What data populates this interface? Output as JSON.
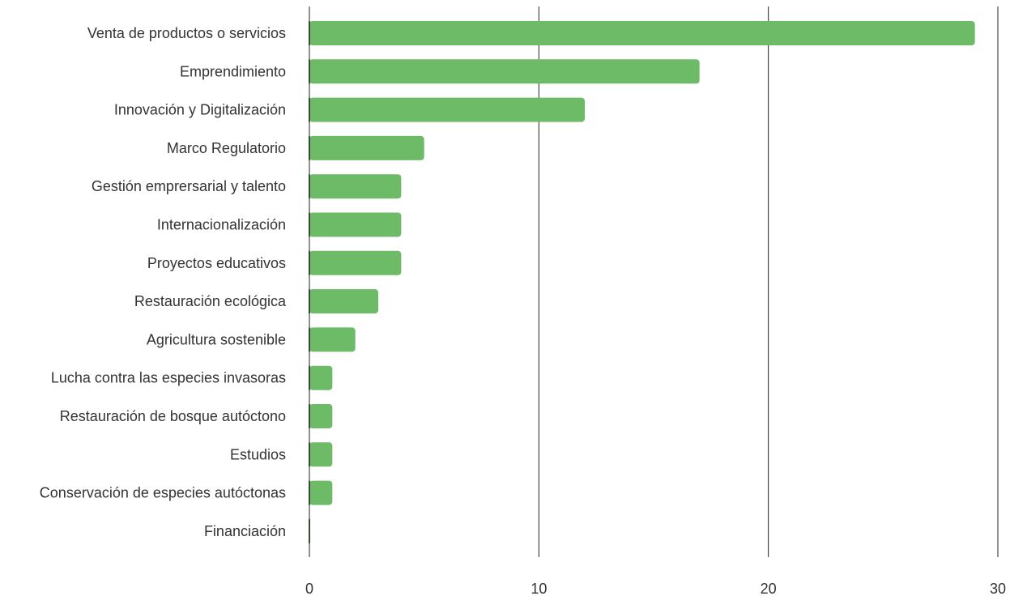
{
  "chart_data": {
    "type": "bar",
    "orientation": "horizontal",
    "title": "",
    "xlabel": "",
    "ylabel": "",
    "categories": [
      "Venta de productos o servicios",
      "Emprendimiento",
      "Innovación y Digitalización",
      "Marco Regulatorio",
      "Gestión emprersarial y talento",
      "Internacionalización",
      "Proyectos educativos",
      "Restauración ecológica",
      "Agricultura sostenible",
      "Lucha contra las especies invasoras",
      "Restauración de bosque autóctono",
      "Estudios",
      "Conservación de especies autóctonas",
      "Financiación"
    ],
    "values": [
      29,
      17,
      12,
      5,
      4,
      4,
      4,
      3,
      2,
      1,
      1,
      1,
      1,
      0
    ],
    "xlim": [
      0,
      30
    ],
    "xticks": [
      0,
      10,
      20,
      30
    ],
    "xtick_labels": [
      "0",
      "10",
      "20",
      "30"
    ],
    "grid": "vertical",
    "legend": "none",
    "bar_color": "#6dbb67",
    "axis_color": "#222222"
  }
}
